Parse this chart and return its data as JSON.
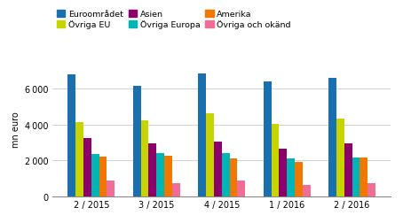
{
  "categories": [
    "2 / 2015",
    "3 / 2015",
    "4 / 2015",
    "1 / 2016",
    "2 / 2016"
  ],
  "series": {
    "Euroområdet": [
      6800,
      6150,
      6850,
      6400,
      6600
    ],
    "Övriga EU": [
      4150,
      4250,
      4650,
      4050,
      4350
    ],
    "Asien": [
      3250,
      2950,
      3050,
      2650,
      2950
    ],
    "Övriga Europa": [
      2350,
      2400,
      2400,
      2100,
      2150
    ],
    "Amerika": [
      2200,
      2250,
      2100,
      1900,
      2150
    ],
    "Övriga och okänd": [
      850,
      700,
      870,
      600,
      720
    ]
  },
  "colors": {
    "Euroområdet": "#1a6faf",
    "Övriga EU": "#c8d400",
    "Asien": "#8b0069",
    "Övriga Europa": "#00b5b5",
    "Amerika": "#f07800",
    "Övriga och okänd": "#f06e96"
  },
  "ylabel": "mn euro",
  "ylim": [
    0,
    7500
  ],
  "yticks": [
    0,
    2000,
    4000,
    6000
  ],
  "background_color": "#ffffff",
  "grid_color": "#cccccc",
  "legend_order": [
    "Euroområdet",
    "Övriga EU",
    "Asien",
    "Övriga Europa",
    "Amerika",
    "Övriga och okänd"
  ],
  "bar_width": 0.12,
  "figsize": [
    4.54,
    2.53
  ],
  "dpi": 100
}
